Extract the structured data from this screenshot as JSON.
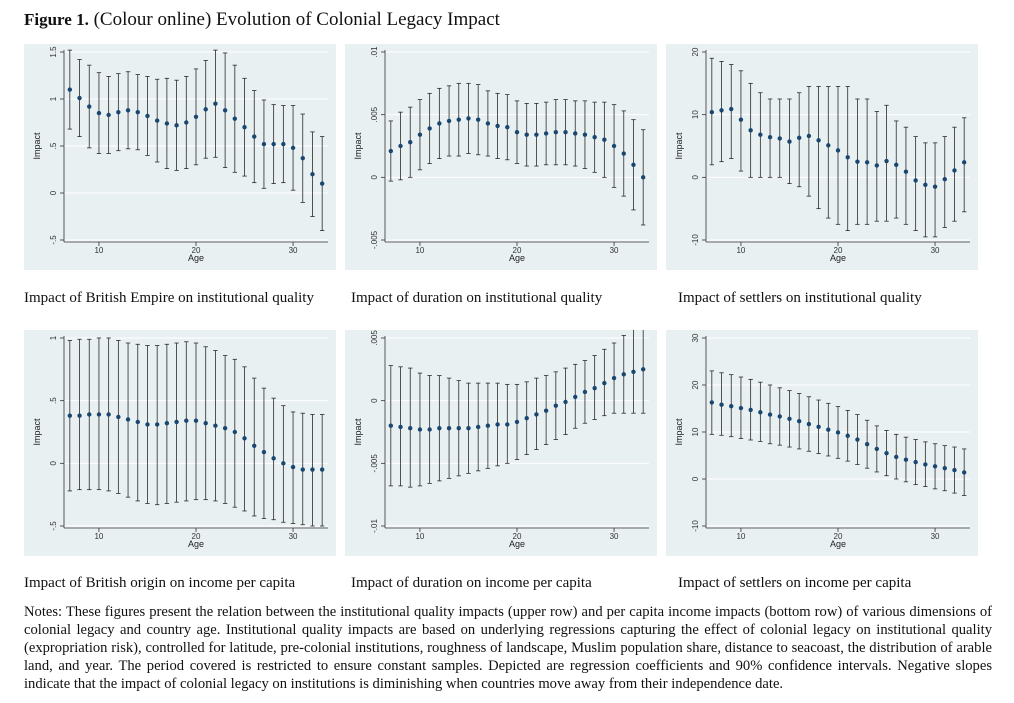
{
  "figure": {
    "label": "Figure 1.",
    "title": "(Colour online) Evolution of Colonial Legacy Impact"
  },
  "notes": "Notes: These figures present the relation between the institutional quality impacts (upper row) and per capita income impacts (bottom row) of various dimensions of colonial legacy and country age. Institutional quality impacts are based on underlying regressions capturing the effect of colonial legacy on institutional quality (expropriation risk), controlled for latitude, pre-colonial institutions, roughness of landscape, Muslim population share, distance to seacoast, the distribution of arable land, and year. The period covered is restricted to ensure constant samples. Depicted are regression coefficients and 90% confidence intervals. Negative slopes indicate that the impact of colonial legacy on institutions is diminishing when countries move away from their independence date.",
  "colors": {
    "panel_bg": "#e9f0f2",
    "grid": "#ffffff",
    "point": "#1a476f",
    "ci": "#2a2a2a"
  },
  "chart_data": [
    {
      "type": "scatter",
      "caption": "Impact of British Empire on institutional quality",
      "xlabel": "Age",
      "ylabel": "Impact",
      "xlim": [
        7,
        33
      ],
      "xticks": [
        10,
        20,
        30
      ],
      "xtick_labels": [
        "10",
        "20",
        "30"
      ],
      "ylim": [
        -0.5,
        1.5
      ],
      "yticks": [
        -0.5,
        0,
        0.5,
        1,
        1.5
      ],
      "ytick_labels": [
        "-.5",
        "0",
        ".5",
        "1",
        "1.5"
      ],
      "x": [
        7,
        8,
        9,
        10,
        11,
        12,
        13,
        14,
        15,
        16,
        17,
        18,
        19,
        20,
        21,
        22,
        23,
        24,
        25,
        26,
        27,
        28,
        29,
        30,
        31,
        32,
        33
      ],
      "y": [
        1.1,
        1.01,
        0.92,
        0.85,
        0.83,
        0.86,
        0.88,
        0.86,
        0.82,
        0.77,
        0.74,
        0.72,
        0.75,
        0.81,
        0.89,
        0.95,
        0.88,
        0.79,
        0.7,
        0.6,
        0.52,
        0.52,
        0.52,
        0.48,
        0.37,
        0.2,
        0.1
      ],
      "lower": [
        0.68,
        0.6,
        0.48,
        0.42,
        0.42,
        0.45,
        0.47,
        0.46,
        0.4,
        0.33,
        0.26,
        0.24,
        0.26,
        0.3,
        0.37,
        0.38,
        0.27,
        0.22,
        0.18,
        0.11,
        0.05,
        0.1,
        0.11,
        0.03,
        -0.1,
        -0.25,
        -0.4
      ],
      "upper": [
        1.52,
        1.42,
        1.36,
        1.28,
        1.24,
        1.27,
        1.29,
        1.26,
        1.24,
        1.21,
        1.22,
        1.2,
        1.24,
        1.32,
        1.41,
        1.52,
        1.49,
        1.36,
        1.22,
        1.09,
        0.99,
        0.94,
        0.93,
        0.93,
        0.84,
        0.65,
        0.6
      ]
    },
    {
      "type": "scatter",
      "caption": "Impact of duration on institutional quality",
      "xlabel": "Age",
      "ylabel": "Impact",
      "xlim": [
        7,
        33
      ],
      "xticks": [
        10,
        20,
        30
      ],
      "xtick_labels": [
        "10",
        "20",
        "30"
      ],
      "ylim": [
        -0.005,
        0.01
      ],
      "yticks": [
        -0.005,
        0,
        0.005,
        0.01
      ],
      "ytick_labels": [
        "-.005",
        "0",
        ".005",
        ".01"
      ],
      "x": [
        7,
        8,
        9,
        10,
        11,
        12,
        13,
        14,
        15,
        16,
        17,
        18,
        19,
        20,
        21,
        22,
        23,
        24,
        25,
        26,
        27,
        28,
        29,
        30,
        31,
        32,
        33
      ],
      "y": [
        0.0021,
        0.0025,
        0.0028,
        0.0034,
        0.0039,
        0.0043,
        0.0045,
        0.0046,
        0.0047,
        0.0046,
        0.0043,
        0.0041,
        0.004,
        0.0036,
        0.0034,
        0.0034,
        0.0035,
        0.0036,
        0.0036,
        0.0035,
        0.0034,
        0.0032,
        0.003,
        0.0025,
        0.0019,
        0.001,
        0.0
      ],
      "lower": [
        -0.0003,
        -0.0002,
        0.0,
        0.0006,
        0.0011,
        0.0015,
        0.0017,
        0.0017,
        0.0019,
        0.0018,
        0.0017,
        0.0015,
        0.0014,
        0.0011,
        0.0009,
        0.0009,
        0.001,
        0.001,
        0.001,
        0.0009,
        0.0007,
        0.0004,
        0.0,
        -0.0008,
        -0.0015,
        -0.0026,
        -0.0038
      ],
      "upper": [
        0.0045,
        0.0052,
        0.0056,
        0.0062,
        0.0067,
        0.0071,
        0.0073,
        0.0075,
        0.0075,
        0.0074,
        0.0069,
        0.0067,
        0.0066,
        0.0061,
        0.0059,
        0.0059,
        0.006,
        0.0062,
        0.0062,
        0.0061,
        0.0061,
        0.006,
        0.006,
        0.0058,
        0.0053,
        0.0046,
        0.0038
      ]
    },
    {
      "type": "scatter",
      "caption": "Impact of settlers on institutional quality",
      "xlabel": "Age",
      "ylabel": "Impact",
      "xlim": [
        7,
        33
      ],
      "xticks": [
        10,
        20,
        30
      ],
      "xtick_labels": [
        "10",
        "20",
        "30"
      ],
      "ylim": [
        -10,
        20
      ],
      "yticks": [
        -10,
        0,
        10,
        20
      ],
      "ytick_labels": [
        "-10",
        "0",
        "10",
        "20"
      ],
      "x": [
        7,
        8,
        9,
        10,
        11,
        12,
        13,
        14,
        15,
        16,
        17,
        18,
        19,
        20,
        21,
        22,
        23,
        24,
        25,
        26,
        27,
        28,
        29,
        30,
        31,
        32,
        33
      ],
      "y": [
        10.4,
        10.7,
        10.9,
        9.2,
        7.5,
        6.8,
        6.4,
        6.2,
        5.7,
        6.3,
        6.6,
        5.9,
        5.1,
        4.3,
        3.2,
        2.5,
        2.4,
        1.9,
        2.6,
        2.0,
        0.9,
        -0.5,
        -1.2,
        -1.5,
        -0.3,
        1.1,
        2.4
      ],
      "lower": [
        2.0,
        2.5,
        3.0,
        1.0,
        0.0,
        0.0,
        0.0,
        0.0,
        -1.0,
        -1.5,
        -3.0,
        -5.0,
        -6.5,
        -7.5,
        -8.5,
        -7.5,
        -7.5,
        -7.0,
        -7.0,
        -6.5,
        -7.5,
        -8.5,
        -9.5,
        -9.5,
        -8.0,
        -7.0,
        -5.5
      ],
      "upper": [
        19.0,
        18.5,
        18.0,
        17.0,
        15.0,
        13.5,
        12.5,
        12.5,
        12.5,
        13.5,
        14.5,
        14.5,
        14.5,
        14.5,
        14.5,
        12.5,
        12.5,
        10.5,
        11.5,
        9.0,
        8.0,
        6.5,
        5.5,
        5.5,
        6.5,
        8.0,
        9.5
      ]
    },
    {
      "type": "scatter",
      "caption": "Impact of British origin on income per capita",
      "xlabel": "Age",
      "ylabel": "Impact",
      "xlim": [
        7,
        33
      ],
      "xticks": [
        10,
        20,
        30
      ],
      "xtick_labels": [
        "10",
        "20",
        "30"
      ],
      "ylim": [
        -0.5,
        1
      ],
      "yticks": [
        -0.5,
        0,
        0.5,
        1
      ],
      "ytick_labels": [
        "-.5",
        "0",
        ".5",
        "1"
      ],
      "x": [
        7,
        8,
        9,
        10,
        11,
        12,
        13,
        14,
        15,
        16,
        17,
        18,
        19,
        20,
        21,
        22,
        23,
        24,
        25,
        26,
        27,
        28,
        29,
        30,
        31,
        32,
        33
      ],
      "y": [
        0.38,
        0.38,
        0.39,
        0.39,
        0.39,
        0.37,
        0.35,
        0.33,
        0.31,
        0.31,
        0.32,
        0.33,
        0.34,
        0.34,
        0.32,
        0.3,
        0.28,
        0.25,
        0.2,
        0.14,
        0.09,
        0.04,
        0.0,
        -0.03,
        -0.05,
        -0.05,
        -0.05
      ],
      "lower": [
        -0.22,
        -0.21,
        -0.21,
        -0.21,
        -0.22,
        -0.24,
        -0.27,
        -0.3,
        -0.32,
        -0.33,
        -0.32,
        -0.31,
        -0.3,
        -0.29,
        -0.29,
        -0.3,
        -0.32,
        -0.35,
        -0.38,
        -0.42,
        -0.44,
        -0.45,
        -0.47,
        -0.48,
        -0.49,
        -0.5,
        -0.5
      ],
      "upper": [
        0.98,
        0.99,
        0.99,
        1.0,
        1.0,
        0.98,
        0.96,
        0.95,
        0.94,
        0.94,
        0.95,
        0.96,
        0.97,
        0.96,
        0.93,
        0.9,
        0.86,
        0.83,
        0.77,
        0.68,
        0.6,
        0.52,
        0.46,
        0.41,
        0.4,
        0.39,
        0.39
      ]
    },
    {
      "type": "scatter",
      "caption": "Impact of duration on income per capita",
      "xlabel": "Age",
      "ylabel": "Impact",
      "xlim": [
        7,
        33
      ],
      "xticks": [
        10,
        20,
        30
      ],
      "xtick_labels": [
        "10",
        "20",
        "30"
      ],
      "ylim": [
        -0.01,
        0.005
      ],
      "yticks": [
        -0.01,
        -0.005,
        0,
        0.005
      ],
      "ytick_labels": [
        "-.01",
        "-.005",
        "0",
        ".005"
      ],
      "x": [
        7,
        8,
        9,
        10,
        11,
        12,
        13,
        14,
        15,
        16,
        17,
        18,
        19,
        20,
        21,
        22,
        23,
        24,
        25,
        26,
        27,
        28,
        29,
        30,
        31,
        32,
        33
      ],
      "y": [
        -0.002,
        -0.0021,
        -0.0022,
        -0.0023,
        -0.0023,
        -0.0022,
        -0.0022,
        -0.0022,
        -0.0022,
        -0.0021,
        -0.002,
        -0.0019,
        -0.0019,
        -0.0017,
        -0.0014,
        -0.0011,
        -0.0008,
        -0.0004,
        -0.0001,
        0.0003,
        0.0007,
        0.001,
        0.0014,
        0.0018,
        0.0021,
        0.0023,
        0.0025
      ],
      "lower": [
        -0.0068,
        -0.0068,
        -0.0069,
        -0.0068,
        -0.0066,
        -0.0064,
        -0.0062,
        -0.006,
        -0.0058,
        -0.0056,
        -0.0054,
        -0.0052,
        -0.005,
        -0.0047,
        -0.0043,
        -0.0039,
        -0.0035,
        -0.0031,
        -0.0027,
        -0.0022,
        -0.0018,
        -0.0015,
        -0.0012,
        -0.001,
        -0.001,
        -0.001,
        -0.001
      ],
      "upper": [
        0.0028,
        0.0027,
        0.0026,
        0.0022,
        0.002,
        0.002,
        0.0018,
        0.0016,
        0.0014,
        0.0014,
        0.0014,
        0.0014,
        0.0013,
        0.0013,
        0.0015,
        0.0018,
        0.002,
        0.0023,
        0.0026,
        0.0029,
        0.0032,
        0.0036,
        0.0041,
        0.0046,
        0.0052,
        0.0057,
        0.0061
      ]
    },
    {
      "type": "scatter",
      "caption": "Impact of settlers on income per capita",
      "xlabel": "Age",
      "ylabel": "Impact",
      "xlim": [
        7,
        33
      ],
      "xticks": [
        10,
        20,
        30
      ],
      "xtick_labels": [
        "10",
        "20",
        "30"
      ],
      "ylim": [
        -10,
        30
      ],
      "yticks": [
        -10,
        0,
        10,
        20,
        30
      ],
      "ytick_labels": [
        "-10",
        "0",
        "10",
        "20",
        "30"
      ],
      "x": [
        7,
        8,
        9,
        10,
        11,
        12,
        13,
        14,
        15,
        16,
        17,
        18,
        19,
        20,
        21,
        22,
        23,
        24,
        25,
        26,
        27,
        28,
        29,
        30,
        31,
        32,
        33
      ],
      "y": [
        16.3,
        15.8,
        15.5,
        15.1,
        14.7,
        14.2,
        13.7,
        13.3,
        12.8,
        12.3,
        11.7,
        11.1,
        10.5,
        9.9,
        9.2,
        8.4,
        7.4,
        6.4,
        5.5,
        4.7,
        4.1,
        3.6,
        3.1,
        2.7,
        2.3,
        1.9,
        1.4
      ],
      "lower": [
        9.5,
        9.3,
        9.0,
        8.6,
        8.3,
        8.0,
        7.5,
        7.2,
        6.8,
        6.4,
        5.9,
        5.4,
        4.9,
        4.4,
        3.8,
        3.1,
        2.3,
        1.5,
        0.7,
        0.0,
        -0.6,
        -1.2,
        -1.6,
        -2.1,
        -2.5,
        -3.0,
        -3.5
      ],
      "upper": [
        23.0,
        22.6,
        22.2,
        21.7,
        21.2,
        20.6,
        20.0,
        19.4,
        18.8,
        18.2,
        17.5,
        16.8,
        16.1,
        15.4,
        14.6,
        13.7,
        12.5,
        11.3,
        10.3,
        9.5,
        8.9,
        8.4,
        7.9,
        7.5,
        7.1,
        6.8,
        6.4
      ]
    }
  ]
}
